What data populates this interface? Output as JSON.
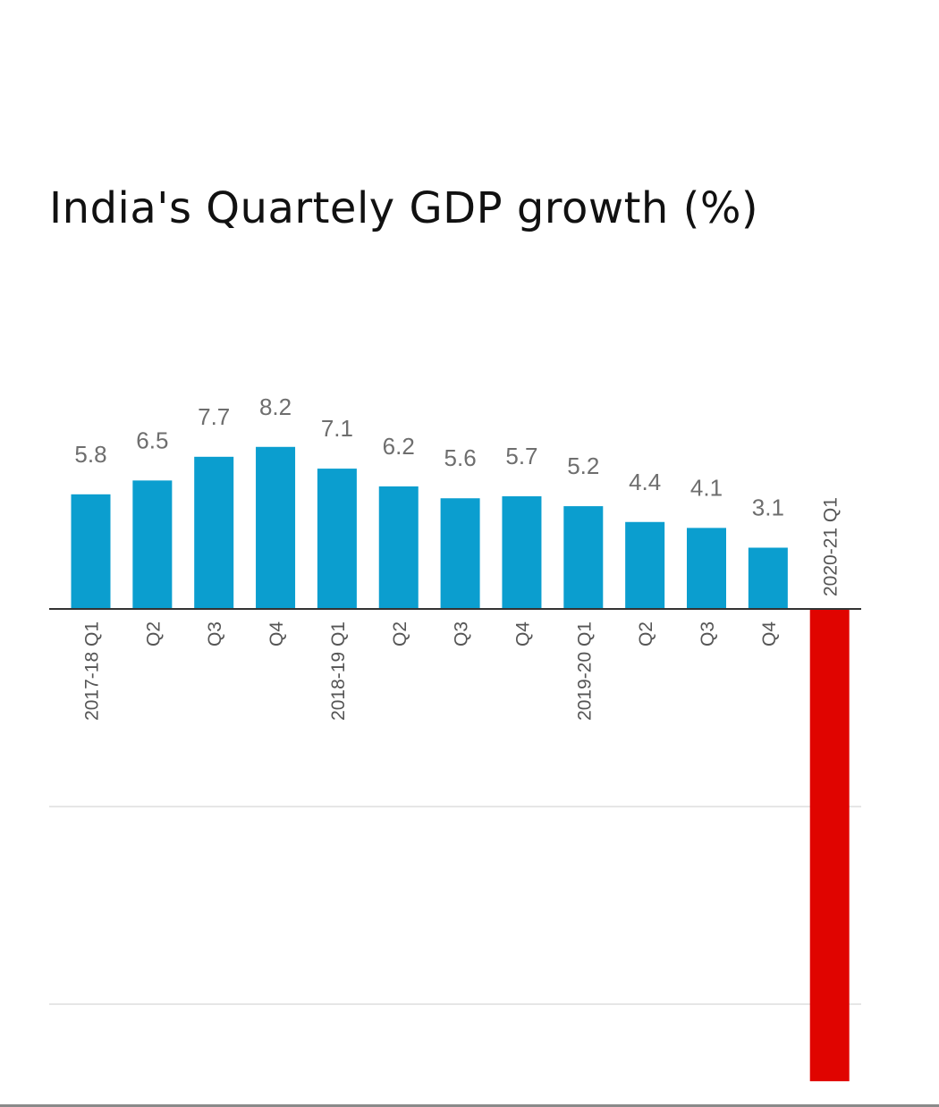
{
  "title": "India's Quartely GDP growth (%)",
  "chart_data": {
    "type": "bar",
    "title": "India's Quartely GDP growth (%)",
    "xlabel": "",
    "ylabel": "",
    "categories": [
      "2017-18 Q1",
      "Q2",
      "Q3",
      "Q4",
      "2018-19 Q1",
      "Q2",
      "Q3",
      "Q4",
      "2019-20 Q1",
      "Q2",
      "Q3",
      "Q4",
      "2020-21 Q1"
    ],
    "values": [
      5.8,
      6.5,
      7.7,
      8.2,
      7.1,
      6.2,
      5.6,
      5.7,
      5.2,
      4.4,
      4.1,
      3.1,
      -23.9
    ],
    "value_labels": [
      "5.8",
      "6.5",
      "7.7",
      "8.2",
      "7.1",
      "6.2",
      "5.6",
      "5.7",
      "5.2",
      "4.4",
      "4.1",
      "3.1",
      ""
    ],
    "ylim": [
      -23.9,
      8.2
    ],
    "gridlines": [
      -10,
      -20
    ],
    "grid": true,
    "legend": "none",
    "colors": {
      "positive": "#0b9ecf",
      "negative": "#e00400",
      "gridline": "#e6e6e6",
      "axis": "#333333",
      "value_label": "#6e6e6e",
      "tick_label": "#555555"
    }
  }
}
